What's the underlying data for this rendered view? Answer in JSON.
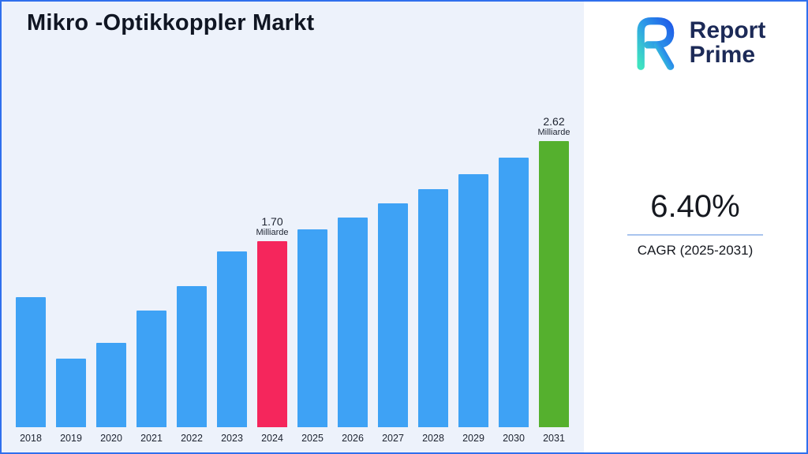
{
  "title": "Mikro -Optikkoppler Markt",
  "logo": {
    "line1": "Report",
    "line2": "Prime",
    "mark": "report-prime-r-mark",
    "text_color": "#1c2a57",
    "gradient": [
      "#3FE3C0",
      "#2D9CE8",
      "#1F5BE8"
    ]
  },
  "stats": {
    "value": "6.40%",
    "label": "CAGR (2025-2031)"
  },
  "chart_data": {
    "type": "bar",
    "title": "Mikro -Optikkoppler Markt",
    "categories": [
      "2018",
      "2019",
      "2020",
      "2021",
      "2022",
      "2023",
      "2024",
      "2025",
      "2026",
      "2027",
      "2028",
      "2029",
      "2030",
      "2031"
    ],
    "values": [
      1.19,
      0.63,
      0.77,
      1.07,
      1.29,
      1.61,
      1.7,
      1.81,
      1.92,
      2.05,
      2.18,
      2.32,
      2.47,
      2.62
    ],
    "unit": "Milliarde",
    "xlabel": "",
    "ylabel": "",
    "ylim": [
      0,
      2.62
    ],
    "grid": false,
    "legend": false,
    "default_bar_color": "#3EA2F5",
    "bar_colors": {
      "2024": "#F5265C",
      "2031": "#55B02E"
    },
    "annotations": [
      {
        "category": "2024",
        "value_label": "1.70",
        "unit_label": "Milliarde"
      },
      {
        "category": "2031",
        "value_label": "2.62",
        "unit_label": "Milliarde"
      }
    ]
  }
}
